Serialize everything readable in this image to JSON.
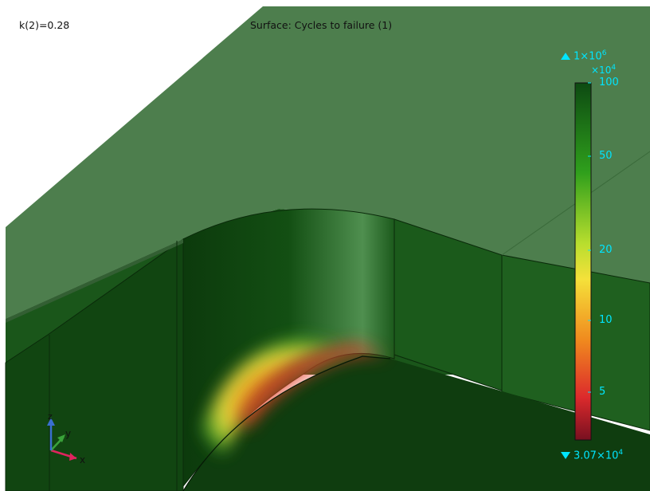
{
  "header": {
    "parameter_label": "k(2)=0.28",
    "plot_title": "Surface: Cycles to failure (1)"
  },
  "colorbar": {
    "max_label": "1×10",
    "max_exp": "6",
    "multiplier": "×10",
    "multiplier_exp": "4",
    "min_label": "3.07×10",
    "min_exp": "4",
    "ticks": [
      "100",
      "50",
      "20",
      "10",
      "5"
    ],
    "colors": [
      "#7a0a1a",
      "#d9202a",
      "#f06c1a",
      "#f5d52a",
      "#b7dd2a",
      "#3cb81a",
      "#0d5a14"
    ]
  },
  "axes_triad": {
    "x": "x",
    "y": "y",
    "z": "z",
    "colors": {
      "x": "#e0245e",
      "y": "#3aa23a",
      "z": "#3a6fd0"
    }
  }
}
